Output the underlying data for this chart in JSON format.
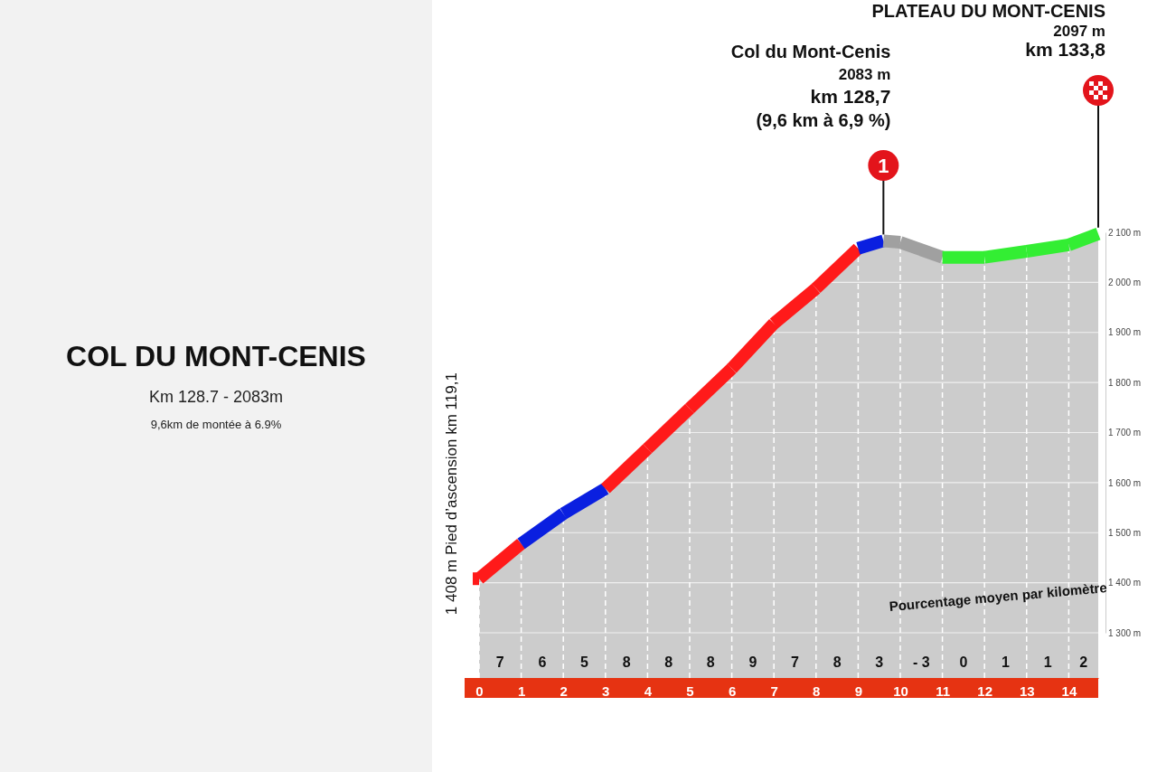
{
  "chart_data": {
    "type": "area",
    "title": "COL DU MONT-CENIS",
    "subtitle": "Km 128.7 - 2083m",
    "x": [
      0,
      1,
      2,
      3,
      4,
      5,
      6,
      7,
      8,
      9,
      9.6,
      10,
      11,
      12,
      13,
      14,
      14.7
    ],
    "series": [
      {
        "values": [
          1408,
          1478,
          1538,
          1588,
          1668,
          1748,
          1828,
          1918,
          1988,
          2068,
          2083,
          2080,
          2050,
          2050,
          2062,
          2075,
          2097
        ],
        "colors": [
          "#ff1a1a",
          "#ff1a1a",
          "#0a1fe0",
          "#0a1fe0",
          "#ff1a1a",
          "#ff1a1a",
          "#ff1a1a",
          "#ff1a1a",
          "#ff1a1a",
          "#ff1a1a",
          "#0a1fe0",
          "#a0a0a0",
          "#a0a0a0",
          "#33ee33",
          "#33ee33",
          "#33ee33",
          "#33ee33"
        ]
      }
    ],
    "xlim": [
      0,
      14.7
    ],
    "xticks": [
      0,
      1,
      2,
      3,
      4,
      5,
      6,
      7,
      8,
      9,
      10,
      11,
      12,
      13,
      14
    ],
    "ylim": [
      1300,
      2100
    ],
    "yticks": [
      {
        "value": 1300,
        "label": "1 300 m"
      },
      {
        "value": 1400,
        "label": "1 400 m"
      },
      {
        "value": 1500,
        "label": "1 500 m"
      },
      {
        "value": 1600,
        "label": "1 600 m"
      },
      {
        "value": 1700,
        "label": "1 700 m"
      },
      {
        "value": 1800,
        "label": "1 800 m"
      },
      {
        "value": 1900,
        "label": "1 900 m"
      },
      {
        "value": 2000,
        "label": "2 000 m"
      },
      {
        "value": 2100,
        "label": "2 100 m"
      }
    ],
    "grid": true,
    "annotations": [
      "9,6km de montée à 6.9%",
      "PLATEAU DU MONT-CENIS\n2097 m\nkm 133,8",
      "Col du Mont-Cenis\n2083 m\nkm 128,7\n(9,6 km à 6,9 %)",
      "1",
      "1 408 m  Pied d’ascension  km 119,1",
      "Pourcentage moyen par kilomètre",
      "7",
      "6",
      "5",
      "8",
      "8",
      "8",
      "9",
      "7",
      "8",
      "3",
      "- 3",
      "0",
      "1",
      "1",
      "2"
    ]
  }
}
